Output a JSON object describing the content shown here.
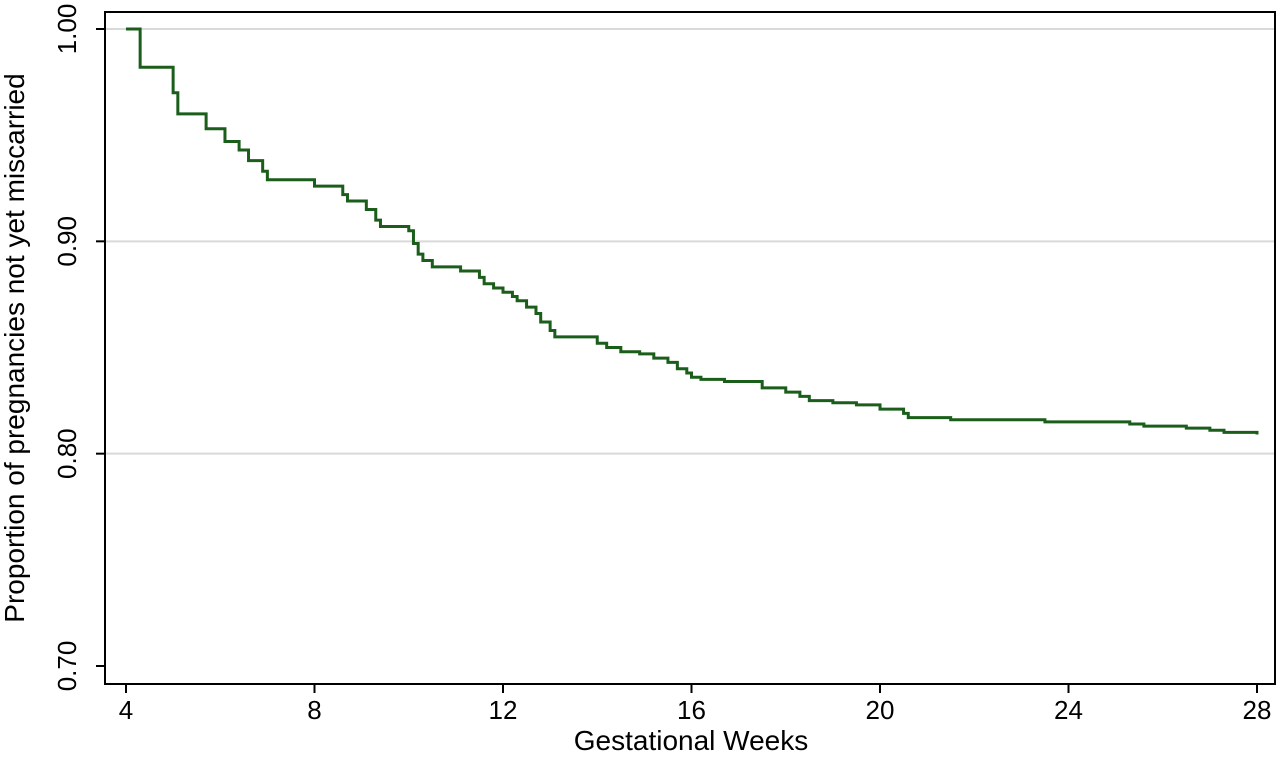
{
  "chart_data": {
    "type": "line",
    "step": true,
    "xlabel": "Gestational Weeks",
    "ylabel": "Proportion of pregnancies not yet miscarried",
    "xlim": [
      4,
      28
    ],
    "ylim": [
      0.7,
      1.0
    ],
    "xticks": [
      4,
      8,
      12,
      16,
      20,
      24,
      28
    ],
    "yticks": [
      "0.70",
      "0.80",
      "0.90",
      "1.00"
    ],
    "ygrid": [
      0.8,
      0.9,
      1.0
    ],
    "grid": "horizontal",
    "colors": {
      "line": "#1b5e1b",
      "grid": "#d9d9d9",
      "axis": "#000000"
    },
    "series": [
      {
        "x": [
          4.0,
          4.3,
          5.0,
          5.1,
          5.7,
          6.1,
          6.4,
          6.6,
          6.9,
          7.0,
          7.6,
          8.0,
          8.6,
          8.7,
          9.1,
          9.3,
          9.4,
          10.0,
          10.1,
          10.2,
          10.3,
          10.5,
          11.1,
          11.5,
          11.6,
          11.8,
          12.0,
          12.2,
          12.3,
          12.5,
          12.7,
          12.8,
          13.0,
          13.1,
          13.2,
          14.0,
          14.2,
          14.5,
          14.9,
          15.2,
          15.5,
          15.7,
          15.9,
          16.0,
          16.2,
          16.7,
          17.0,
          17.5,
          18.0,
          18.3,
          18.5,
          19.0,
          19.5,
          20.0,
          20.5,
          20.6,
          21.5,
          23.5,
          25.3,
          25.6,
          26.5,
          27.0,
          27.3,
          28.0
        ],
        "y": [
          1.0,
          0.982,
          0.97,
          0.96,
          0.953,
          0.947,
          0.943,
          0.938,
          0.933,
          0.929,
          0.929,
          0.926,
          0.922,
          0.919,
          0.915,
          0.91,
          0.907,
          0.905,
          0.899,
          0.894,
          0.891,
          0.888,
          0.886,
          0.883,
          0.88,
          0.878,
          0.876,
          0.874,
          0.872,
          0.869,
          0.866,
          0.862,
          0.858,
          0.855,
          0.855,
          0.852,
          0.85,
          0.848,
          0.847,
          0.845,
          0.843,
          0.84,
          0.838,
          0.836,
          0.835,
          0.834,
          0.834,
          0.831,
          0.829,
          0.827,
          0.825,
          0.824,
          0.823,
          0.821,
          0.819,
          0.817,
          0.816,
          0.815,
          0.814,
          0.813,
          0.812,
          0.811,
          0.81,
          0.809
        ]
      }
    ]
  }
}
